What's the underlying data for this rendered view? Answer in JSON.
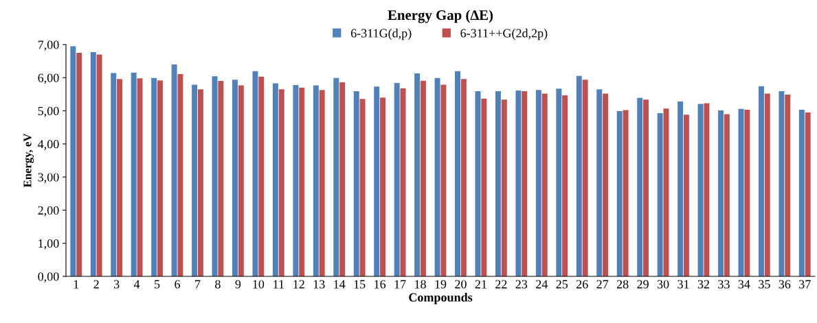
{
  "chart_data": {
    "type": "bar",
    "title": "Energy Gap (∆E)",
    "xlabel": "Compounds",
    "ylabel": "Energy, eV",
    "categories": [
      "1",
      "2",
      "3",
      "4",
      "5",
      "6",
      "7",
      "8",
      "9",
      "10",
      "11",
      "12",
      "13",
      "14",
      "15",
      "16",
      "17",
      "18",
      "19",
      "20",
      "21",
      "22",
      "23",
      "24",
      "25",
      "26",
      "27",
      "28",
      "29",
      "30",
      "31",
      "32",
      "33",
      "34",
      "35",
      "36",
      "37"
    ],
    "series": [
      {
        "name": "6-311G(d,p)",
        "color": "#4f81bd",
        "values": [
          6.95,
          6.77,
          6.14,
          6.15,
          5.99,
          6.4,
          5.79,
          6.04,
          5.94,
          6.2,
          5.83,
          5.78,
          5.77,
          5.99,
          5.59,
          5.73,
          5.84,
          6.13,
          5.99,
          6.2,
          5.59,
          5.59,
          5.61,
          5.63,
          5.67,
          6.05,
          5.65,
          4.99,
          5.39,
          4.93,
          5.28,
          5.21,
          5.01,
          5.06,
          5.74,
          5.59,
          5.03
        ]
      },
      {
        "name": "6-311++G(2d,2p)",
        "color": "#c0504d",
        "values": [
          6.75,
          6.7,
          5.96,
          5.98,
          5.92,
          6.11,
          5.65,
          5.9,
          5.77,
          6.03,
          5.65,
          5.7,
          5.63,
          5.86,
          5.36,
          5.4,
          5.68,
          5.91,
          5.79,
          5.96,
          5.37,
          5.34,
          5.59,
          5.52,
          5.47,
          5.94,
          5.52,
          5.02,
          5.34,
          5.07,
          4.88,
          5.23,
          4.9,
          5.03,
          5.52,
          5.49,
          4.95
        ]
      }
    ],
    "ylim": [
      0,
      7
    ],
    "yticks": [
      {
        "value": 0,
        "label": "0,00"
      },
      {
        "value": 1,
        "label": "1,00"
      },
      {
        "value": 2,
        "label": "2,00"
      },
      {
        "value": 3,
        "label": "3,00"
      },
      {
        "value": 4,
        "label": "4,00"
      },
      {
        "value": 5,
        "label": "5,00"
      },
      {
        "value": 6,
        "label": "6,00"
      },
      {
        "value": 7,
        "label": "7,00"
      }
    ],
    "grid": false,
    "legend": "top"
  }
}
